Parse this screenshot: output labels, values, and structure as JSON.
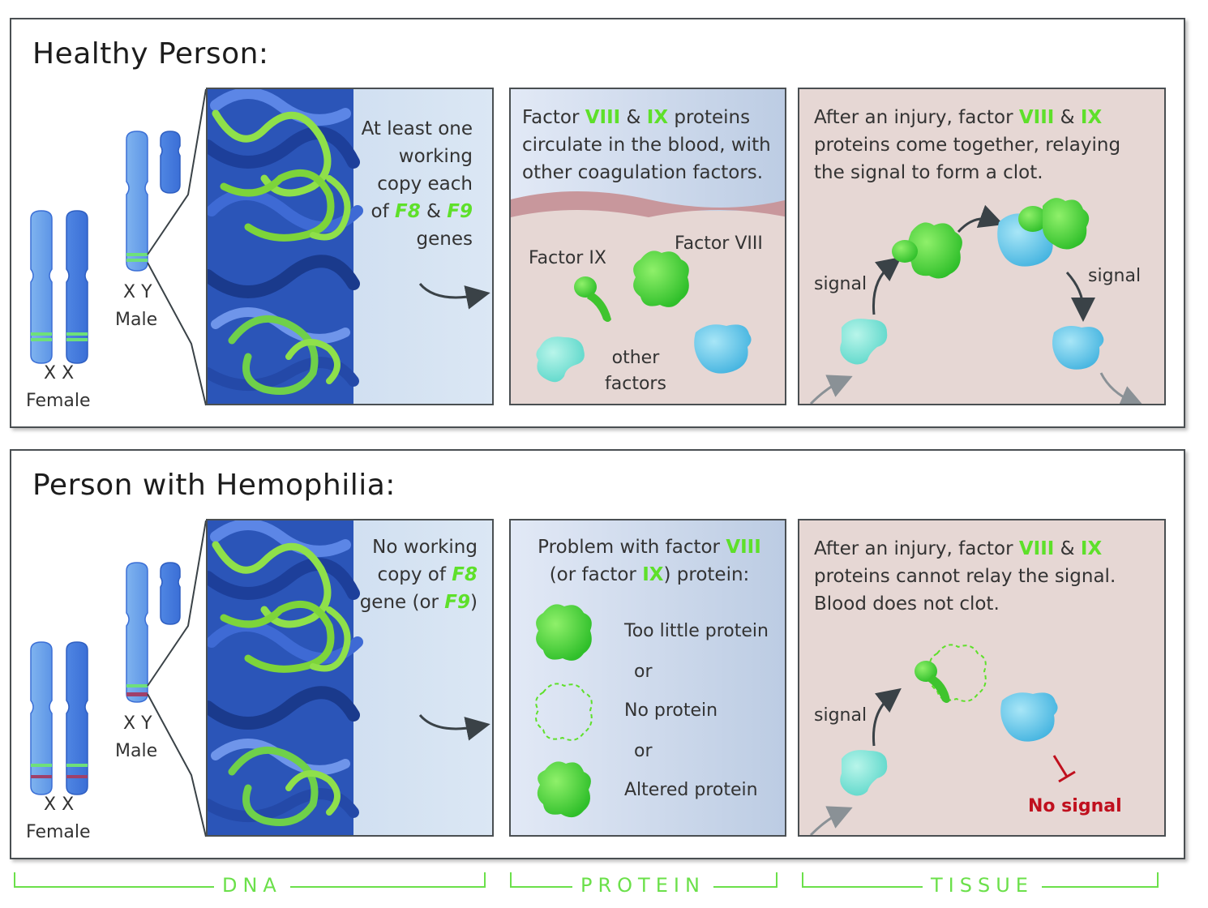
{
  "healthy": {
    "title": "Healthy Person:",
    "female": {
      "xx": "X X",
      "label": "Female"
    },
    "male": {
      "xy": "X Y",
      "label": "Male"
    },
    "dna_text": [
      "At least one",
      "working",
      "copy each",
      "of",
      "F8",
      "&",
      "F9",
      "genes"
    ],
    "protein_text": {
      "l1a": "Factor",
      "viii": "VIII",
      "amp": "&",
      "ix": "IX",
      "l1b": "proteins",
      "l2": "circulate in the blood, with",
      "l3": "other coagulation factors."
    },
    "factor_ix": "Factor IX",
    "factor_viii": "Factor VIII",
    "other_factors": [
      "other",
      "factors"
    ],
    "tissue_text": {
      "l1a": "After an injury, factor",
      "viii": "VIII",
      "amp": "&",
      "ix": "IX",
      "l2": "proteins come together, relaying",
      "l3": "the signal to form a clot."
    },
    "signal_left": "signal",
    "signal_right": "signal"
  },
  "hemophilia": {
    "title": "Person with Hemophilia:",
    "female": {
      "xx": "X X",
      "label": "Female"
    },
    "male": {
      "xy": "X Y",
      "label": "Male"
    },
    "dna_text": {
      "l1": "No working",
      "l2a": "copy of",
      "f8": "F8",
      "l3a": "gene (or",
      "f9": "F9",
      "l3b": ")"
    },
    "protein_text": {
      "l1a": "Problem with factor",
      "viii": "VIII",
      "l2a": "(or factor",
      "ix": "IX",
      "l2b": ") protein:"
    },
    "options": [
      "Too little protein",
      "or",
      "No protein",
      "or",
      "Altered protein"
    ],
    "tissue_text": {
      "l1a": "After an injury, factor",
      "viii": "VIII",
      "amp": "&",
      "ix": "IX",
      "l2": "proteins cannot relay the signal.",
      "l3": "Blood does not clot."
    },
    "signal": "signal",
    "no_signal": "No signal"
  },
  "axis": {
    "dna": "DNA",
    "protein": "PROTEIN",
    "tissue": "TISSUE"
  },
  "colors": {
    "green": "#5ee02a",
    "border": "#4a4f52",
    "tissue_bg": "#e6d7d4",
    "no_signal_red": "#c0101e"
  }
}
